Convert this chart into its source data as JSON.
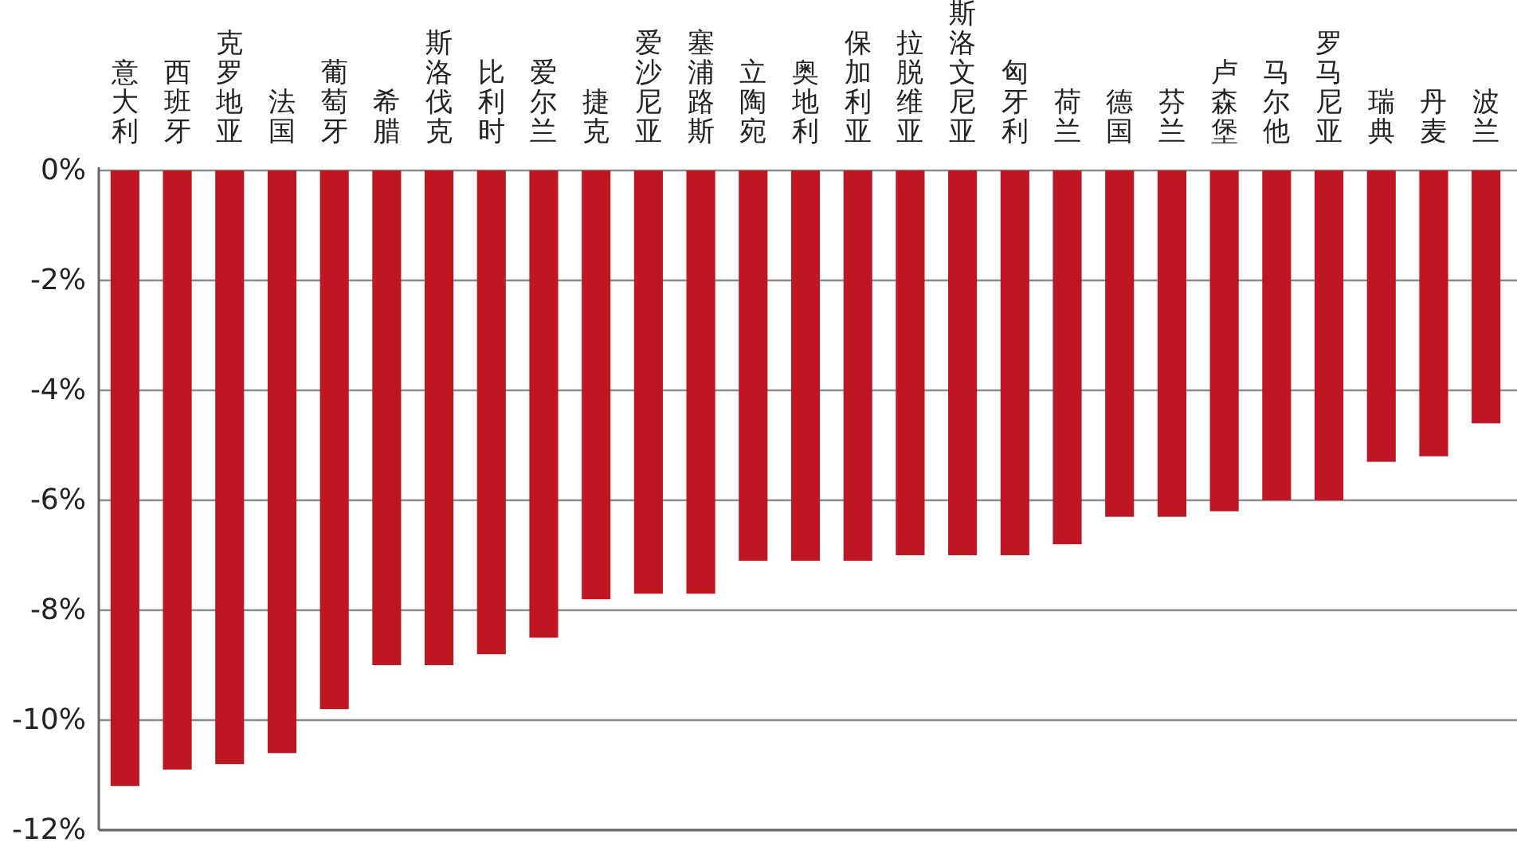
{
  "chart_data": {
    "type": "bar",
    "categories": [
      "意大利",
      "西班牙",
      "克罗地亚",
      "法国",
      "葡萄牙",
      "希腊",
      "斯洛伐克",
      "比利时",
      "爱尔兰",
      "捷克",
      "爱沙尼亚",
      "塞浦路斯",
      "立陶宛",
      "奥地利",
      "保加利亚",
      "拉脱维亚",
      "斯洛文尼亚",
      "匈牙利",
      "荷兰",
      "德国",
      "芬兰",
      "卢森堡",
      "马尔他",
      "罗马尼亚",
      "瑞典",
      "丹麦",
      "波兰"
    ],
    "values": [
      -11.2,
      -10.9,
      -10.8,
      -10.6,
      -9.8,
      -9.0,
      -9.0,
      -8.8,
      -8.5,
      -7.8,
      -7.7,
      -7.7,
      -7.1,
      -7.1,
      -7.1,
      -7.0,
      -7.0,
      -7.0,
      -6.8,
      -6.3,
      -6.3,
      -6.2,
      -6.0,
      -6.0,
      -5.3,
      -5.2,
      -4.6
    ],
    "color": "#be1622",
    "ylim": [
      -12,
      0
    ],
    "yticks": [
      {
        "value": 0,
        "label": "0%"
      },
      {
        "value": -2,
        "label": "-2%"
      },
      {
        "value": -4,
        "label": "-4%"
      },
      {
        "value": -6,
        "label": "-6%"
      },
      {
        "value": -8,
        "label": "-8%"
      },
      {
        "value": -10,
        "label": "-10%"
      },
      {
        "value": -12,
        "label": "-12%"
      }
    ],
    "grid": "y"
  }
}
